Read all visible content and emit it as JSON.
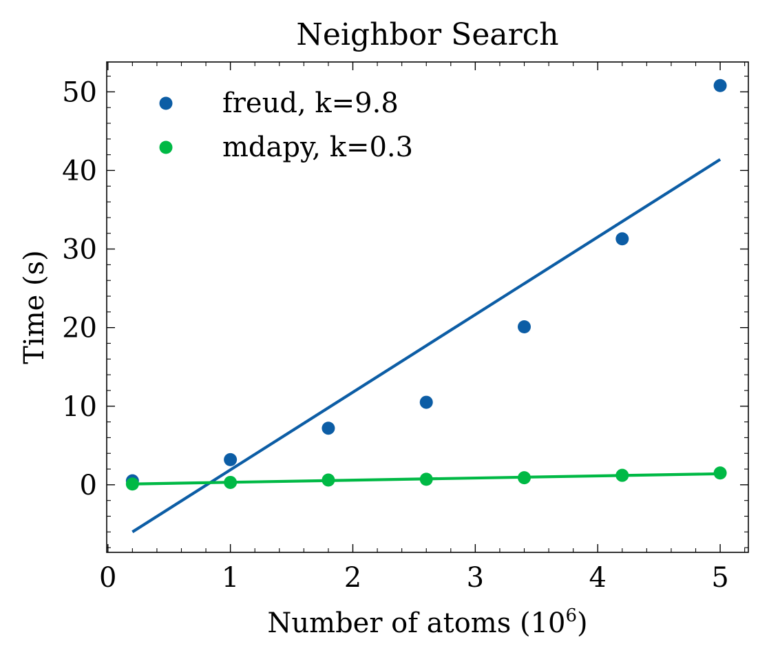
{
  "chart_data": {
    "type": "scatter",
    "title": "Neighbor Search",
    "xlabel": "Number of atoms (10",
    "xlabel_superscript": "6",
    "xlabel_suffix": ")",
    "ylabel": "Time (s)",
    "xlim": [
      -0.01,
      5.23
    ],
    "ylim": [
      -8.6,
      53.8
    ],
    "x_major_ticks": [
      0,
      1,
      2,
      3,
      4,
      5
    ],
    "x_minor_step": 0.2,
    "y_major_ticks": [
      0,
      10,
      20,
      30,
      40,
      50
    ],
    "y_minor_step": 2,
    "grid": false,
    "legend_position": "upper-left",
    "series": [
      {
        "name": "freud, k=9.8",
        "color": "#0C5DA5",
        "x": [
          0.2,
          1.0,
          1.8,
          2.6,
          3.4,
          4.2,
          5.0
        ],
        "y": [
          0.5,
          3.2,
          7.2,
          10.5,
          20.1,
          31.3,
          50.8
        ],
        "fit": {
          "x": [
            0.2,
            5.0
          ],
          "y": [
            -6.0,
            41.4
          ]
        }
      },
      {
        "name": "mdapy, k=0.3",
        "color": "#00B945",
        "x": [
          0.2,
          1.0,
          1.8,
          2.6,
          3.4,
          4.2,
          5.0
        ],
        "y": [
          0.1,
          0.3,
          0.6,
          0.7,
          0.9,
          1.2,
          1.5
        ],
        "fit": {
          "x": [
            0.2,
            5.0
          ],
          "y": [
            0.1,
            1.4
          ]
        }
      }
    ]
  }
}
